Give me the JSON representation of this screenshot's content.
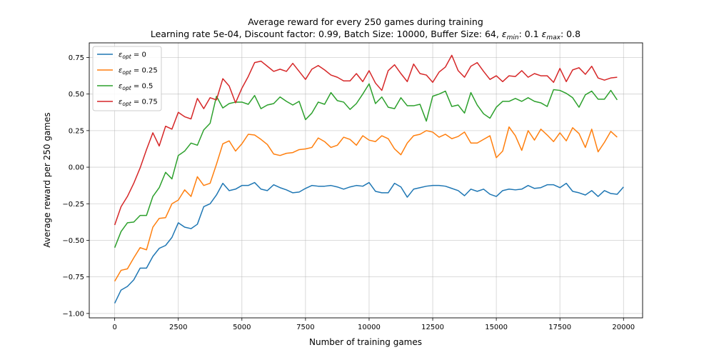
{
  "chart_data": {
    "type": "line",
    "title": "Average reward for every 250 games during training",
    "subtitle": "Learning rate 5e-04, Discount factor: 0.99, Batch Size: 10000, Buffer Size: 64, ε_min: 0.1 ε_max: 0.8",
    "subtitle_parts": {
      "prefix": "Learning rate 5e-04, Discount factor: 0.99, Batch Size: 10000, Buffer Size: 64, ",
      "emin_symbol": "ε",
      "emin_sub": "min",
      "emin_value": ": 0.1 ",
      "emax_symbol": "ε",
      "emax_sub": "max",
      "emax_value": ": 0.8"
    },
    "xlabel": "Number of training games",
    "ylabel": "Average reward per 250 games",
    "xlim": [
      -1000,
      20750
    ],
    "ylim": [
      -1.03,
      0.85
    ],
    "xticks": [
      0,
      2500,
      5000,
      7500,
      10000,
      12500,
      15000,
      17500,
      20000
    ],
    "xtick_labels": [
      "0",
      "2500",
      "5000",
      "7500",
      "10000",
      "12500",
      "15000",
      "17500",
      "20000"
    ],
    "yticks": [
      -1.0,
      -0.75,
      -0.5,
      -0.25,
      0.0,
      0.25,
      0.5,
      0.75
    ],
    "ytick_labels": [
      "−1.00",
      "−0.75",
      "−0.50",
      "−0.25",
      "0.00",
      "0.25",
      "0.50",
      "0.75"
    ],
    "grid": true,
    "legend_position": "top-left",
    "x_start": 0,
    "x_step": 250,
    "series": [
      {
        "name": "ε_opt = 0",
        "label_symbol": "ε",
        "label_sub": "opt",
        "label_value": " = 0",
        "color": "#1f77b4",
        "values": [
          -0.93,
          -0.84,
          -0.815,
          -0.77,
          -0.69,
          -0.69,
          -0.61,
          -0.555,
          -0.535,
          -0.48,
          -0.38,
          -0.41,
          -0.42,
          -0.39,
          -0.27,
          -0.25,
          -0.19,
          -0.11,
          -0.16,
          -0.15,
          -0.125,
          -0.125,
          -0.105,
          -0.15,
          -0.16,
          -0.12,
          -0.14,
          -0.155,
          -0.175,
          -0.17,
          -0.145,
          -0.125,
          -0.13,
          -0.13,
          -0.125,
          -0.135,
          -0.15,
          -0.135,
          -0.125,
          -0.13,
          -0.105,
          -0.165,
          -0.175,
          -0.175,
          -0.11,
          -0.135,
          -0.205,
          -0.15,
          -0.14,
          -0.13,
          -0.125,
          -0.125,
          -0.13,
          -0.145,
          -0.16,
          -0.195,
          -0.15,
          -0.165,
          -0.15,
          -0.185,
          -0.2,
          -0.16,
          -0.15,
          -0.155,
          -0.15,
          -0.125,
          -0.145,
          -0.14,
          -0.12,
          -0.12,
          -0.14,
          -0.11,
          -0.165,
          -0.175,
          -0.19,
          -0.16,
          -0.2,
          -0.16,
          -0.18,
          -0.185,
          -0.135
        ]
      },
      {
        "name": "ε_opt = 0.25",
        "label_symbol": "ε",
        "label_sub": "opt",
        "label_value": " = 0.25",
        "color": "#ff7f0e",
        "values": [
          -0.78,
          -0.705,
          -0.695,
          -0.62,
          -0.55,
          -0.565,
          -0.41,
          -0.35,
          -0.345,
          -0.25,
          -0.225,
          -0.155,
          -0.2,
          -0.065,
          -0.125,
          -0.11,
          0.02,
          0.16,
          0.18,
          0.11,
          0.16,
          0.225,
          0.22,
          0.19,
          0.155,
          0.09,
          0.08,
          0.095,
          0.1,
          0.12,
          0.125,
          0.135,
          0.2,
          0.175,
          0.135,
          0.15,
          0.205,
          0.19,
          0.15,
          0.215,
          0.185,
          0.175,
          0.215,
          0.195,
          0.125,
          0.085,
          0.165,
          0.215,
          0.225,
          0.25,
          0.24,
          0.205,
          0.225,
          0.195,
          0.21,
          0.24,
          0.165,
          0.165,
          0.19,
          0.215,
          0.065,
          0.11,
          0.275,
          0.215,
          0.115,
          0.25,
          0.185,
          0.26,
          0.22,
          0.175,
          0.235,
          0.18,
          0.27,
          0.23,
          0.135,
          0.26,
          0.105,
          0.17,
          0.245,
          0.205
        ]
      },
      {
        "name": "ε_opt = 0.5",
        "label_symbol": "ε",
        "label_sub": "opt",
        "label_value": " = 0.5",
        "color": "#2ca02c",
        "values": [
          -0.55,
          -0.44,
          -0.38,
          -0.375,
          -0.33,
          -0.33,
          -0.2,
          -0.14,
          -0.035,
          -0.08,
          0.08,
          0.11,
          0.165,
          0.15,
          0.255,
          0.3,
          0.485,
          0.405,
          0.435,
          0.445,
          0.445,
          0.43,
          0.49,
          0.4,
          0.425,
          0.435,
          0.48,
          0.45,
          0.425,
          0.45,
          0.325,
          0.37,
          0.445,
          0.43,
          0.51,
          0.455,
          0.445,
          0.395,
          0.435,
          0.5,
          0.57,
          0.435,
          0.48,
          0.41,
          0.4,
          0.475,
          0.42,
          0.42,
          0.43,
          0.315,
          0.485,
          0.5,
          0.52,
          0.415,
          0.425,
          0.37,
          0.51,
          0.425,
          0.365,
          0.335,
          0.41,
          0.45,
          0.45,
          0.47,
          0.45,
          0.475,
          0.45,
          0.44,
          0.415,
          0.53,
          0.525,
          0.505,
          0.475,
          0.41,
          0.495,
          0.52,
          0.465,
          0.465,
          0.525,
          0.46
        ]
      },
      {
        "name": "ε_opt = 0.75",
        "label_symbol": "ε",
        "label_sub": "opt",
        "label_value": " = 0.75",
        "color": "#d62728",
        "values": [
          -0.395,
          -0.27,
          -0.2,
          -0.11,
          -0.005,
          0.12,
          0.235,
          0.145,
          0.28,
          0.26,
          0.375,
          0.345,
          0.33,
          0.47,
          0.4,
          0.475,
          0.46,
          0.605,
          0.555,
          0.44,
          0.54,
          0.62,
          0.715,
          0.725,
          0.69,
          0.655,
          0.67,
          0.655,
          0.71,
          0.655,
          0.6,
          0.67,
          0.695,
          0.665,
          0.63,
          0.615,
          0.59,
          0.59,
          0.64,
          0.585,
          0.66,
          0.575,
          0.525,
          0.66,
          0.7,
          0.64,
          0.585,
          0.705,
          0.64,
          0.63,
          0.58,
          0.65,
          0.685,
          0.765,
          0.66,
          0.615,
          0.69,
          0.715,
          0.655,
          0.6,
          0.625,
          0.585,
          0.625,
          0.62,
          0.66,
          0.615,
          0.64,
          0.625,
          0.625,
          0.58,
          0.675,
          0.585,
          0.665,
          0.68,
          0.635,
          0.69,
          0.61,
          0.595,
          0.61,
          0.615
        ]
      }
    ]
  }
}
